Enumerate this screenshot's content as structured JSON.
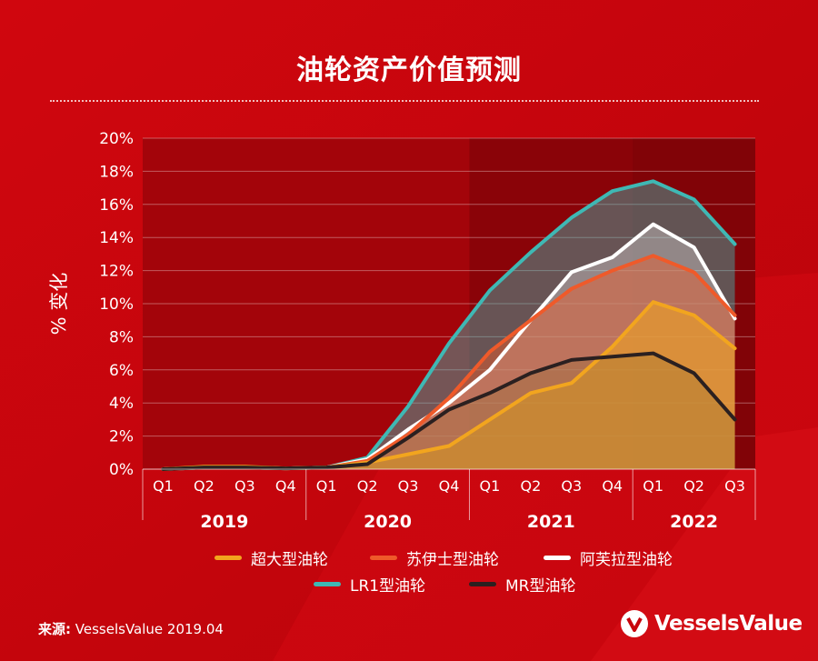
{
  "title": "油轮资产价值预测",
  "source": {
    "label": "来源:",
    "text": "VesselsValue 2019.04"
  },
  "brand": "VesselsValue",
  "chart_data": {
    "type": "area",
    "ylabel": "% 变化",
    "ylim": [
      0,
      20
    ],
    "yticks": [
      "0%",
      "2%",
      "4%",
      "6%",
      "8%",
      "10%",
      "12%",
      "14%",
      "16%",
      "18%",
      "20%"
    ],
    "categories": [
      "Q1",
      "Q2",
      "Q3",
      "Q4",
      "Q1",
      "Q2",
      "Q3",
      "Q4",
      "Q1",
      "Q2",
      "Q3",
      "Q4",
      "Q1",
      "Q2",
      "Q3"
    ],
    "years": [
      {
        "label": "2019",
        "quarters": 4
      },
      {
        "label": "2020",
        "quarters": 4
      },
      {
        "label": "2021",
        "quarters": 4
      },
      {
        "label": "2022",
        "quarters": 3
      }
    ],
    "forecast_start_index": 8,
    "grid": true,
    "legend_position": "bottom",
    "series": [
      {
        "name": "LR1型油轮",
        "color": "#3fb8b4",
        "values": [
          0,
          0.1,
          0.1,
          0.05,
          0.1,
          0.7,
          3.8,
          7.6,
          10.8,
          13.1,
          15.2,
          16.8,
          17.4,
          16.3,
          13.6
        ]
      },
      {
        "name": "阿芙拉型油轮",
        "color": "#ffffff",
        "values": [
          0,
          0.1,
          0.1,
          0.05,
          0.1,
          0.6,
          2.4,
          4.0,
          6.0,
          9.0,
          11.9,
          12.8,
          14.8,
          13.4,
          9.1
        ]
      },
      {
        "name": "苏伊士型油轮",
        "color": "#ef5a2a",
        "values": [
          0,
          0.1,
          0.1,
          0.05,
          0.1,
          0.5,
          2.1,
          4.3,
          7.1,
          9.0,
          10.9,
          12.0,
          12.9,
          11.9,
          9.3
        ]
      },
      {
        "name": "超大型油轮",
        "color": "#f2a51e",
        "values": [
          0,
          0.15,
          0.15,
          0.05,
          0.1,
          0.4,
          0.9,
          1.4,
          3.0,
          4.6,
          5.2,
          7.4,
          10.1,
          9.3,
          7.3
        ]
      },
      {
        "name": "MR型油轮",
        "color": "#2b2020",
        "values": [
          0,
          0.1,
          0.1,
          0.05,
          0.1,
          0.3,
          1.9,
          3.6,
          4.6,
          5.8,
          6.6,
          6.8,
          7.0,
          5.8,
          3.0
        ]
      }
    ],
    "legend_order": [
      "超大型油轮",
      "苏伊士型油轮",
      "阿芙拉型油轮",
      "LR1型油轮",
      "MR型油轮"
    ]
  }
}
